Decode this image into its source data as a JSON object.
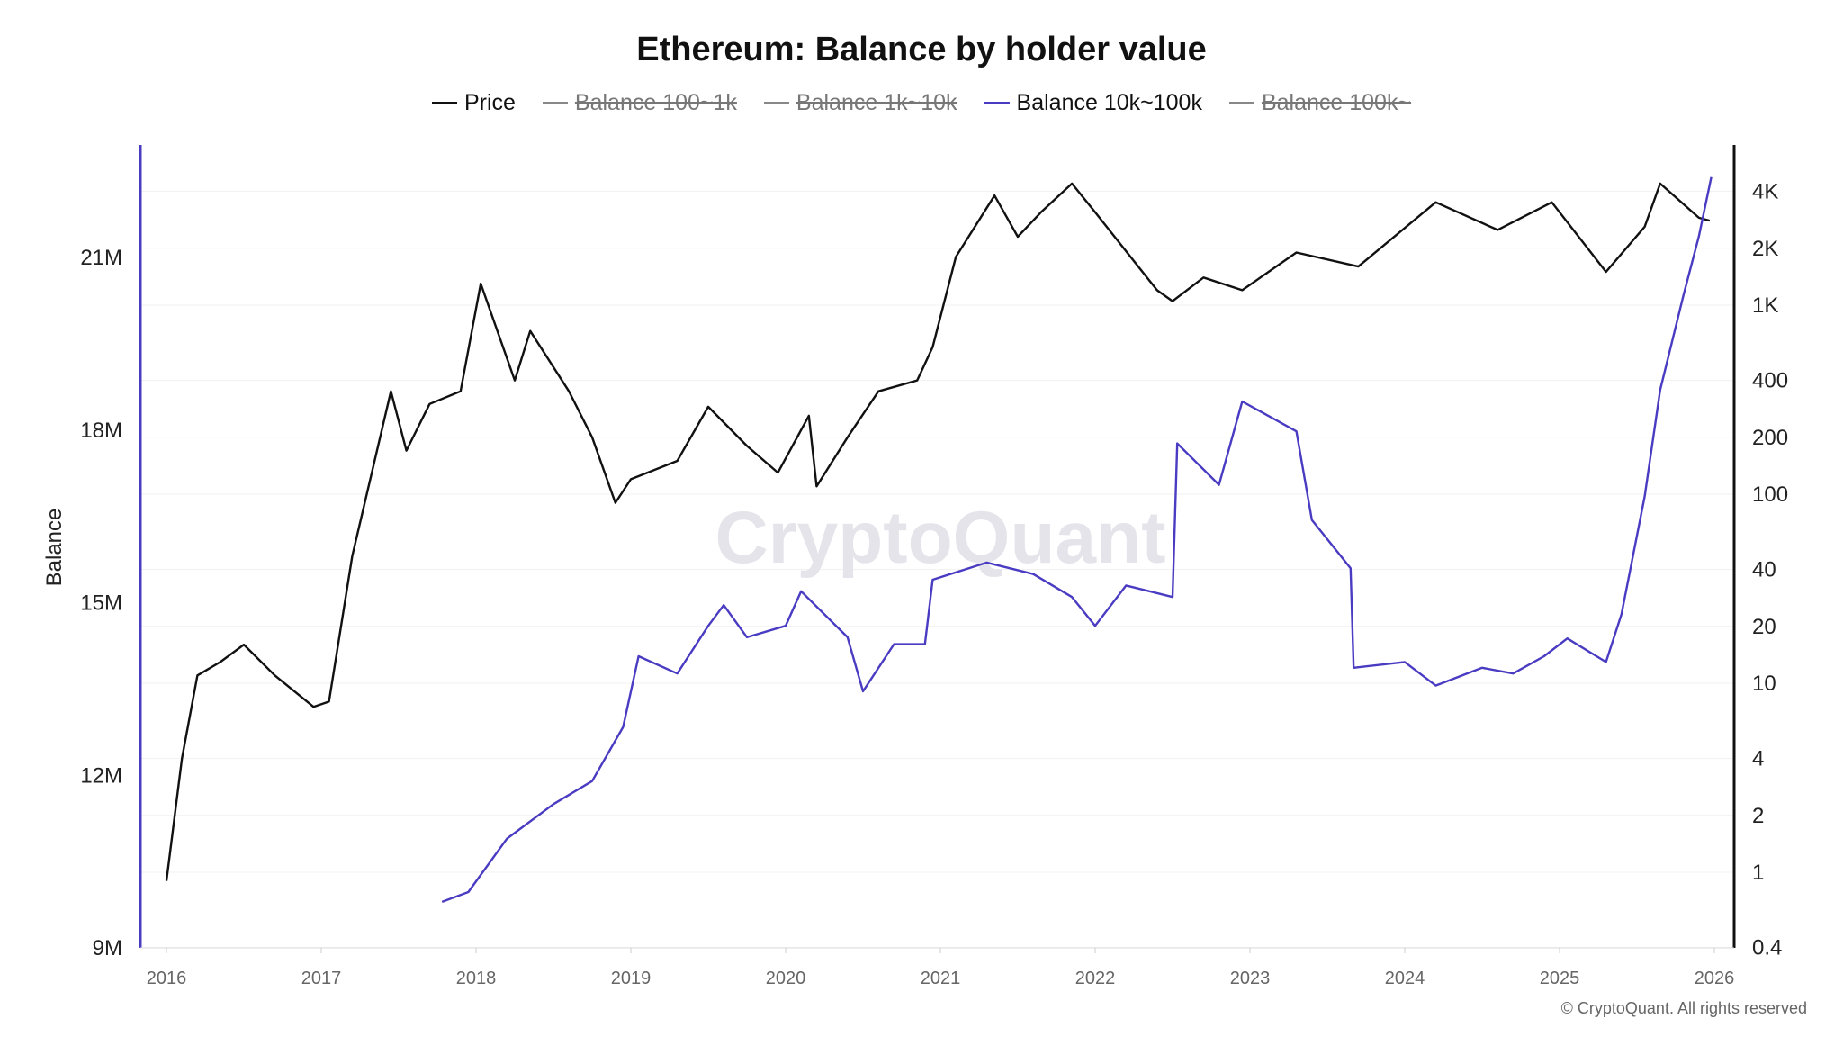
{
  "chart_data": {
    "type": "line",
    "title": "Ethereum: Balance by holder value",
    "legend": [
      {
        "name": "Price",
        "color": "#111111",
        "visible": true
      },
      {
        "name": "Balance 100~1k",
        "color": "#888888",
        "visible": false
      },
      {
        "name": "Balance 1k~10k",
        "color": "#888888",
        "visible": false
      },
      {
        "name": "Balance 10k~100k",
        "color": "#4a3cc2",
        "visible": true
      },
      {
        "name": "Balance 100k~",
        "color": "#888888",
        "visible": false
      }
    ],
    "legend_position": "top-center",
    "ylabel_left": "Balance",
    "y_left_ticks": [
      "9M",
      "12M",
      "15M",
      "18M",
      "21M"
    ],
    "y_left_range_millions": [
      9,
      23
    ],
    "y_right_scale": "log",
    "y_right_ticks": [
      "0.4",
      "1",
      "2",
      "4",
      "10",
      "20",
      "40",
      "100",
      "200",
      "400",
      "1K",
      "2K",
      "4K"
    ],
    "y_right_tick_values": [
      0.4,
      1,
      2,
      4,
      10,
      20,
      40,
      100,
      200,
      400,
      1000,
      2000,
      4000
    ],
    "x_ticks": [
      "2016",
      "2017",
      "2018",
      "2019",
      "2020",
      "2021",
      "2022",
      "2023",
      "2024",
      "2025",
      "2026"
    ],
    "grid": "horizontal",
    "series": [
      {
        "name": "Price",
        "axis": "right",
        "color": "#111111",
        "x": [
          2016.0,
          2016.1,
          2016.2,
          2016.35,
          2016.5,
          2016.7,
          2016.95,
          2017.05,
          2017.2,
          2017.45,
          2017.55,
          2017.7,
          2017.9,
          2018.03,
          2018.25,
          2018.35,
          2018.6,
          2018.75,
          2018.9,
          2019.0,
          2019.3,
          2019.5,
          2019.75,
          2019.95,
          2020.15,
          2020.2,
          2020.4,
          2020.6,
          2020.85,
          2020.95,
          2021.1,
          2021.35,
          2021.5,
          2021.65,
          2021.85,
          2022.0,
          2022.4,
          2022.5,
          2022.7,
          2022.95,
          2023.3,
          2023.7,
          2024.2,
          2024.6,
          2024.95,
          2025.3,
          2025.55,
          2025.65,
          2025.9,
          2025.97
        ],
        "y": [
          0.9,
          4,
          11,
          13,
          16,
          11,
          7.5,
          8,
          47,
          350,
          170,
          300,
          350,
          1300,
          400,
          730,
          350,
          200,
          90,
          120,
          150,
          290,
          180,
          130,
          260,
          110,
          200,
          350,
          400,
          600,
          1800,
          3800,
          2300,
          3100,
          4400,
          3100,
          1200,
          1050,
          1400,
          1200,
          1900,
          1600,
          3500,
          2500,
          3500,
          1500,
          2600,
          4400,
          2900,
          2800
        ]
      },
      {
        "name": "Balance 10k~100k",
        "axis": "left",
        "unit": "M",
        "color": "#4a3cc2",
        "x": [
          2017.78,
          2017.95,
          2018.2,
          2018.5,
          2018.75,
          2018.95,
          2019.05,
          2019.3,
          2019.5,
          2019.6,
          2019.75,
          2020.0,
          2020.1,
          2020.4,
          2020.5,
          2020.7,
          2020.9,
          2020.95,
          2021.3,
          2021.6,
          2021.85,
          2022.0,
          2022.2,
          2022.5,
          2022.53,
          2022.8,
          2022.95,
          2023.3,
          2023.4,
          2023.65,
          2023.67,
          2024.0,
          2024.2,
          2024.5,
          2024.7,
          2024.9,
          2025.05,
          2025.3,
          2025.4,
          2025.55,
          2025.65,
          2025.8,
          2025.9,
          2025.98
        ],
        "y": [
          9.8,
          9.97,
          10.9,
          11.5,
          11.9,
          12.84,
          14.07,
          13.77,
          14.6,
          14.96,
          14.4,
          14.6,
          15.2,
          14.4,
          13.46,
          14.28,
          14.28,
          15.4,
          15.7,
          15.5,
          15.1,
          14.6,
          15.3,
          15.1,
          17.77,
          17.05,
          18.5,
          17.98,
          16.44,
          15.6,
          13.87,
          13.97,
          13.56,
          13.87,
          13.77,
          14.07,
          14.38,
          13.97,
          14.8,
          16.85,
          18.7,
          20.34,
          21.37,
          22.4
        ]
      }
    ]
  },
  "watermark": "CryptoQuant",
  "copyright": "© CryptoQuant. All rights reserved"
}
